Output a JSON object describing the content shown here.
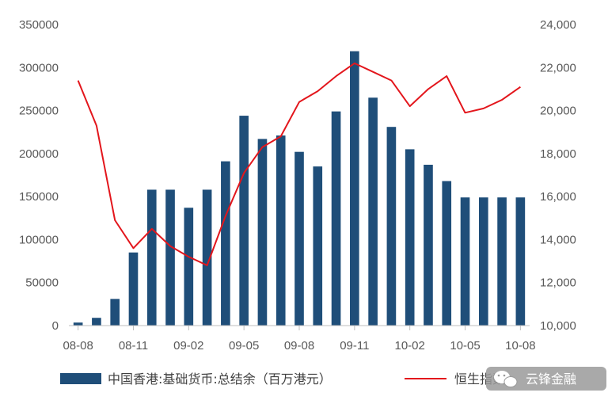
{
  "chart_data": {
    "type": "bar",
    "title": "",
    "xlabel": "",
    "ylabel": "",
    "y2label": "",
    "ylim": [
      0,
      350000
    ],
    "y2lim": [
      10000,
      24000
    ],
    "yticks": [
      "0",
      "50000",
      "100000",
      "150000",
      "200000",
      "250000",
      "300000",
      "350000"
    ],
    "y2ticks": [
      "10,000",
      "12,000",
      "14,000",
      "16,000",
      "18,000",
      "20,000",
      "22,000",
      "24,000"
    ],
    "xtick_labels": [
      "08-08",
      "08-11",
      "09-02",
      "09-05",
      "09-08",
      "09-11",
      "10-02",
      "10-05",
      "10-08"
    ],
    "grid": false,
    "legend_position": "bottom",
    "colors": {
      "bar": "#1f4e79",
      "line": "#e3161c",
      "axis": "#bfbfbf"
    },
    "categories": [
      "08-08",
      "08-09",
      "08-10",
      "08-11",
      "08-12",
      "09-01",
      "09-02",
      "09-03",
      "09-04",
      "09-05",
      "09-06",
      "09-07",
      "09-08",
      "09-09",
      "09-10",
      "09-11",
      "09-12",
      "10-01",
      "10-02",
      "10-03",
      "10-04",
      "10-05",
      "10-06",
      "10-07",
      "10-08"
    ],
    "series": [
      {
        "name": "中国香港:基础货币:总结余（百万港元）",
        "type": "bar",
        "axis": "left",
        "values": [
          3500,
          9000,
          31000,
          85000,
          158000,
          158000,
          137000,
          158000,
          191000,
          244000,
          217000,
          221000,
          202000,
          185000,
          249000,
          319000,
          265000,
          231000,
          205000,
          187000,
          168000,
          149000,
          149000,
          149000,
          149000
        ]
      },
      {
        "name": "恒生指数",
        "type": "line",
        "axis": "right",
        "values": [
          21400,
          19300,
          14900,
          13600,
          14500,
          13700,
          13200,
          12800,
          15100,
          17100,
          18300,
          18800,
          20400,
          20900,
          21600,
          22200,
          21800,
          21400,
          20200,
          21000,
          21600,
          19900,
          20100,
          20500,
          21100
        ]
      }
    ]
  },
  "watermark": {
    "text": "云锋金融",
    "partial_legend": "恒生指数"
  }
}
